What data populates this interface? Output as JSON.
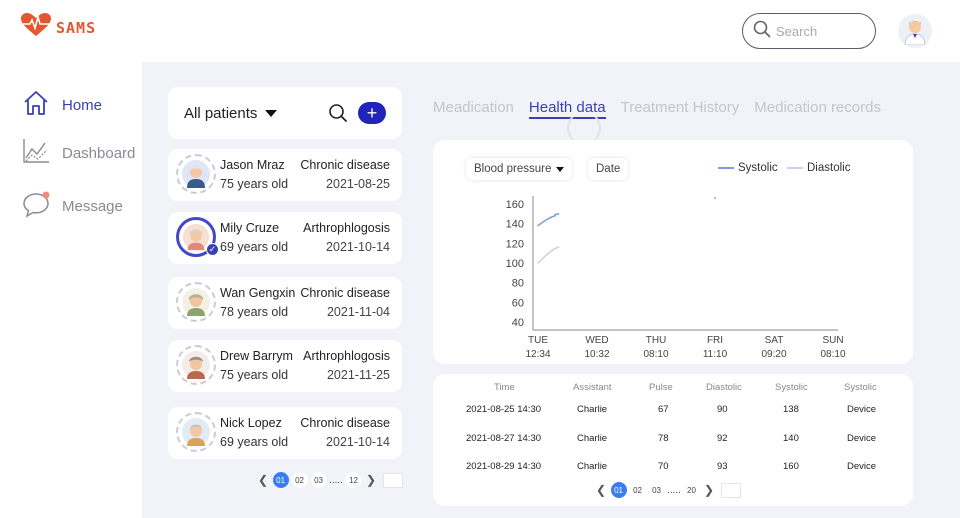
{
  "app": {
    "logo_text": "SAMS"
  },
  "search": {
    "placeholder": "Search"
  },
  "sidebar": {
    "items": [
      {
        "label": "Home",
        "icon": "home-icon",
        "active": true
      },
      {
        "label": "Dashboard",
        "icon": "chart-icon",
        "active": false
      },
      {
        "label": "Message",
        "icon": "message-icon",
        "active": false
      }
    ]
  },
  "filter": {
    "label": "All patients"
  },
  "patients": [
    {
      "name": "Jason Mraz",
      "age": "75 years old",
      "condition": "Chronic disease",
      "date": "2021-08-25",
      "selected": false
    },
    {
      "name": "Mily Cruze",
      "age": "69 years old",
      "condition": "Arthrophlogosis",
      "date": "2021-10-14",
      "selected": true
    },
    {
      "name": "Wan Gengxin",
      "age": "78 years old",
      "condition": "Chronic disease",
      "date": "2021-11-04",
      "selected": false
    },
    {
      "name": "Drew Barrym",
      "age": "75 years old",
      "condition": "Arthrophlogosis",
      "date": "2021-11-25",
      "selected": false
    },
    {
      "name": "Nick Lopez",
      "age": "69 years old",
      "condition": "Chronic disease",
      "date": "2021-10-14",
      "selected": false
    }
  ],
  "patient_pager": {
    "pages": [
      "01",
      "02",
      "03"
    ],
    "dots": ".....",
    "last": "12"
  },
  "tabs": [
    {
      "label": "Meadication",
      "active": false
    },
    {
      "label": "Health data",
      "active": true
    },
    {
      "label": "Treatment History",
      "active": false
    },
    {
      "label": "Medication records",
      "active": false
    }
  ],
  "chart_controls": {
    "metric": "Blood pressure",
    "date_label": "Date"
  },
  "chart_data": {
    "type": "line",
    "categories": [
      [
        "TUE",
        "12:34"
      ],
      [
        "WED",
        "10:32"
      ],
      [
        "THU",
        "08:10"
      ],
      [
        "FRI",
        "11:10"
      ],
      [
        "SAT",
        "09:20"
      ],
      [
        "SUN",
        "08:10"
      ]
    ],
    "y_ticks": [
      "40",
      "60",
      "80",
      "100",
      "120",
      "140",
      "160"
    ],
    "ylim": [
      40,
      160
    ],
    "grid": false,
    "legend_position": "top-right",
    "series": [
      {
        "name": "Systolic",
        "color": "#7c9be0",
        "points": [
          [
            0,
            138
          ],
          [
            0.3,
            148
          ],
          [
            0.35,
            150
          ]
        ]
      },
      {
        "name": "Diastolic",
        "color": "#c8d1ee",
        "points": [
          [
            0,
            100
          ],
          [
            0.35,
            116
          ]
        ]
      }
    ]
  },
  "table": {
    "headers": [
      "Time",
      "Assistant",
      "Pulse",
      "Diastolic",
      "Systolic",
      "Systolic"
    ],
    "rows": [
      [
        "2021-08-25  14:30",
        "Charlie",
        "67",
        "90",
        "138",
        "Device"
      ],
      [
        "2021-08-27  14:30",
        "Charlie",
        "78",
        "92",
        "140",
        "Device"
      ],
      [
        "2021-08-29  14:30",
        "Charlie",
        "70",
        "93",
        "160",
        "Device"
      ]
    ]
  },
  "table_pager": {
    "pages": [
      "01",
      "02",
      "03"
    ],
    "dots": ".....",
    "last": "20"
  },
  "colors": {
    "accent": "#3b3fb6",
    "brand": "#e4572e",
    "background": "#f2f3f9",
    "pager_active": "#3b7cf4"
  }
}
